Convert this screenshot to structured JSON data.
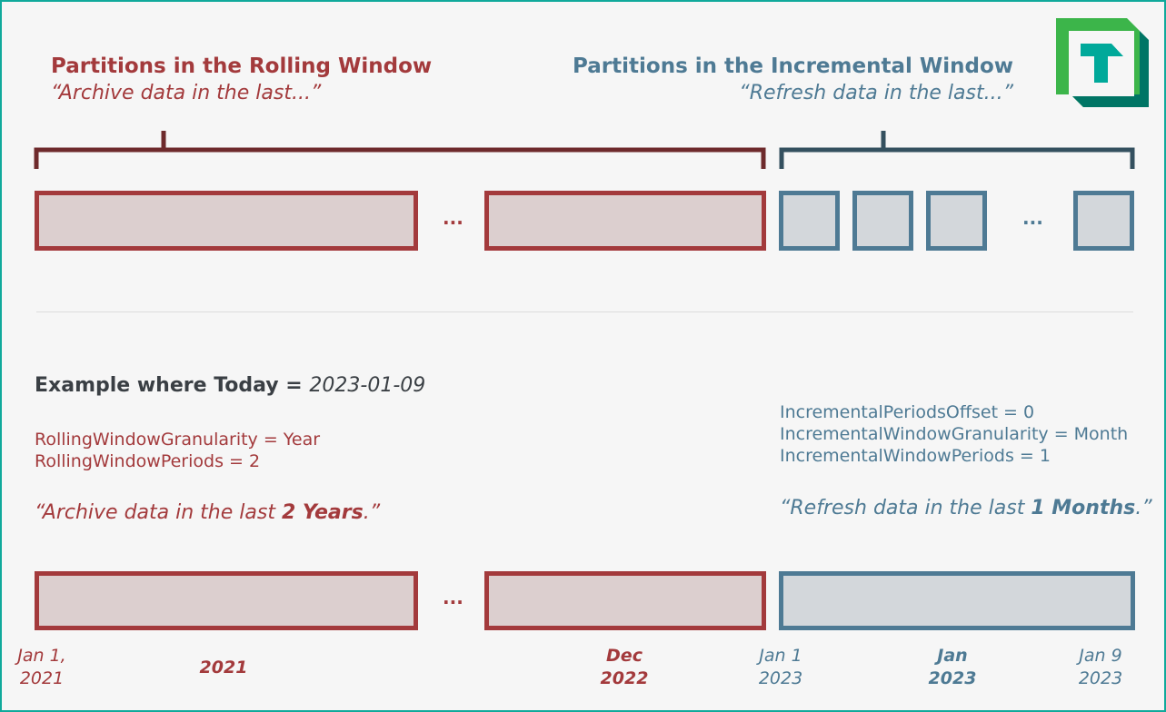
{
  "rolling": {
    "title": "Partitions in the Rolling Window",
    "subtitle": "“Archive data in the last...”"
  },
  "incremental": {
    "title": "Partitions in the Incremental Window",
    "subtitle": "“Refresh data in the last...”"
  },
  "ellipsis": "...",
  "example": {
    "heading": "Example where Today = ",
    "date": "2023-01-09"
  },
  "rolling_params": [
    "RollingWindowGranularity = Year",
    "RollingWindowPeriods = 2"
  ],
  "incremental_params": [
    "IncrementalPeriodsOffset = 0",
    "IncrementalWindowGranularity = Month",
    "IncrementalWindowPeriods = 1"
  ],
  "rolling_quote": {
    "pre": "“Archive data in the last ",
    "bold": "2 Years",
    "post": ".”"
  },
  "incremental_quote": {
    "pre": "“Refresh data in the last ",
    "bold": "1 Months",
    "post": ".”"
  },
  "timeline": {
    "jan1_2021": [
      "Jan 1,",
      "2021"
    ],
    "y2021": "2021",
    "dec2022": [
      "Dec",
      "2022"
    ],
    "jan1_2023": [
      "Jan 1",
      "2023"
    ],
    "jan2023": [
      "Jan",
      "2023"
    ],
    "jan9_2023": [
      "Jan 9",
      "2023"
    ]
  },
  "colors": {
    "rolling": "#a33a3c",
    "incremental": "#4e7a94",
    "border": "#10a99b"
  },
  "logo": {
    "icon": "tabular-editor-logo",
    "letter": "T"
  }
}
